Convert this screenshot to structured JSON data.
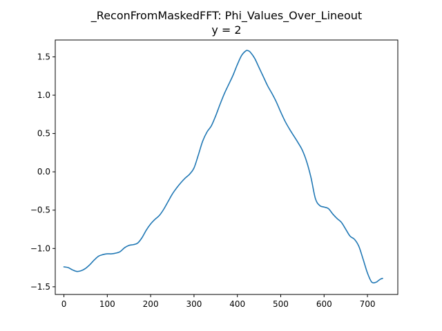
{
  "chart_data": {
    "type": "line",
    "title": "_ReconFromMaskedFFT: Phi_Values_Over_Lineout",
    "subtitle": "y = 2",
    "xlabel": "",
    "ylabel": "",
    "xlim": [
      -20,
      770
    ],
    "ylim": [
      -1.6,
      1.72
    ],
    "grid": false,
    "x_ticks": [
      0,
      100,
      200,
      300,
      400,
      500,
      600,
      700
    ],
    "x_tick_labels": [
      "0",
      "100",
      "200",
      "300",
      "400",
      "500",
      "600",
      "700"
    ],
    "y_ticks": [
      -1.5,
      -1.0,
      -0.5,
      0.0,
      0.5,
      1.0,
      1.5
    ],
    "y_tick_labels": [
      "−1.5",
      "−1.0",
      "−0.5",
      "0.0",
      "0.5",
      "1.0",
      "1.5"
    ],
    "series": [
      {
        "name": "phi",
        "color": "#1f77b4",
        "x": [
          0,
          10,
          20,
          30,
          40,
          50,
          60,
          70,
          80,
          90,
          100,
          110,
          120,
          130,
          140,
          150,
          160,
          170,
          180,
          190,
          200,
          210,
          220,
          230,
          240,
          250,
          260,
          270,
          280,
          290,
          300,
          310,
          320,
          330,
          340,
          350,
          360,
          370,
          380,
          390,
          400,
          410,
          420,
          425,
          430,
          440,
          450,
          460,
          470,
          480,
          490,
          500,
          510,
          520,
          530,
          540,
          550,
          560,
          570,
          580,
          590,
          600,
          610,
          620,
          630,
          640,
          650,
          660,
          670,
          680,
          690,
          700,
          710,
          720,
          725,
          730,
          735
        ],
        "y": [
          -1.24,
          -1.25,
          -1.28,
          -1.3,
          -1.29,
          -1.26,
          -1.21,
          -1.15,
          -1.1,
          -1.08,
          -1.07,
          -1.07,
          -1.06,
          -1.04,
          -0.99,
          -0.96,
          -0.95,
          -0.93,
          -0.86,
          -0.76,
          -0.68,
          -0.62,
          -0.57,
          -0.49,
          -0.39,
          -0.29,
          -0.21,
          -0.14,
          -0.08,
          -0.03,
          0.05,
          0.22,
          0.4,
          0.52,
          0.6,
          0.73,
          0.88,
          1.02,
          1.14,
          1.26,
          1.4,
          1.52,
          1.58,
          1.58,
          1.56,
          1.48,
          1.36,
          1.24,
          1.12,
          1.02,
          0.91,
          0.78,
          0.66,
          0.56,
          0.47,
          0.38,
          0.28,
          0.13,
          -0.08,
          -0.35,
          -0.44,
          -0.46,
          -0.48,
          -0.55,
          -0.61,
          -0.66,
          -0.75,
          -0.84,
          -0.88,
          -0.97,
          -1.14,
          -1.32,
          -1.44,
          -1.44,
          -1.42,
          -1.4,
          -1.39
        ]
      }
    ]
  }
}
